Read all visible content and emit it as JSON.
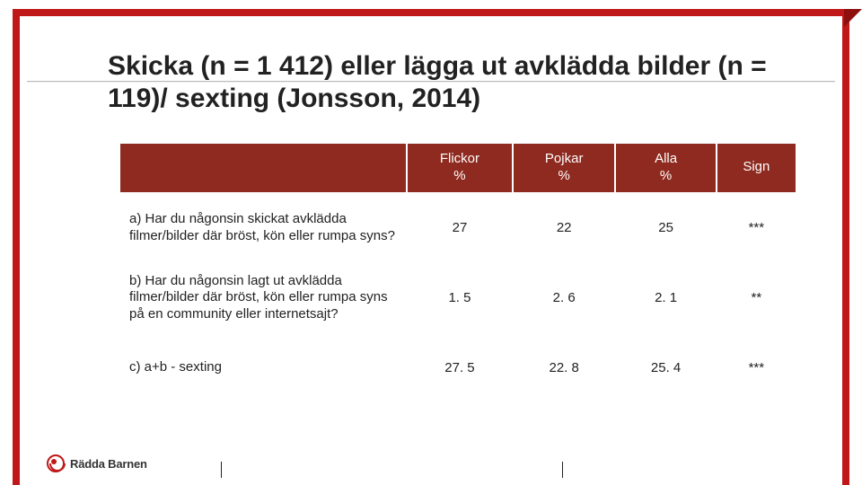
{
  "title": "Skicka (n = 1 412) eller lägga ut avklädda bilder (n = 119)/ sexting (Jonsson, 2014)",
  "table": {
    "header_bg": "#8e2a1f",
    "header_color": "#ffffff",
    "columns": [
      "",
      "Flickor\n%",
      "Pojkar\n%",
      "Alla\n%",
      "Sign"
    ],
    "rows": [
      {
        "question": "a) Har du någonsin skickat avklädda filmer/bilder där bröst, kön eller rumpa syns?",
        "flickor": "27",
        "pojkar": "22",
        "alla": "25",
        "sign": "***"
      },
      {
        "question": "b) Har du någonsin lagt ut avklädda filmer/bilder där bröst, kön eller rumpa syns på en community eller internetsajt?",
        "flickor": "1. 5",
        "pojkar": "2. 6",
        "alla": "2. 1",
        "sign": "**"
      },
      {
        "question": "c)  a+b - sexting",
        "flickor": "27. 5",
        "pojkar": "22. 8",
        "alla": "25. 4",
        "sign": "***"
      }
    ]
  },
  "footer": {
    "org": "Rädda Barnen"
  },
  "colors": {
    "accent_red": "#c01818",
    "header_maroon": "#8e2a1f",
    "text": "#222222",
    "rule": "#bbbbbb"
  }
}
